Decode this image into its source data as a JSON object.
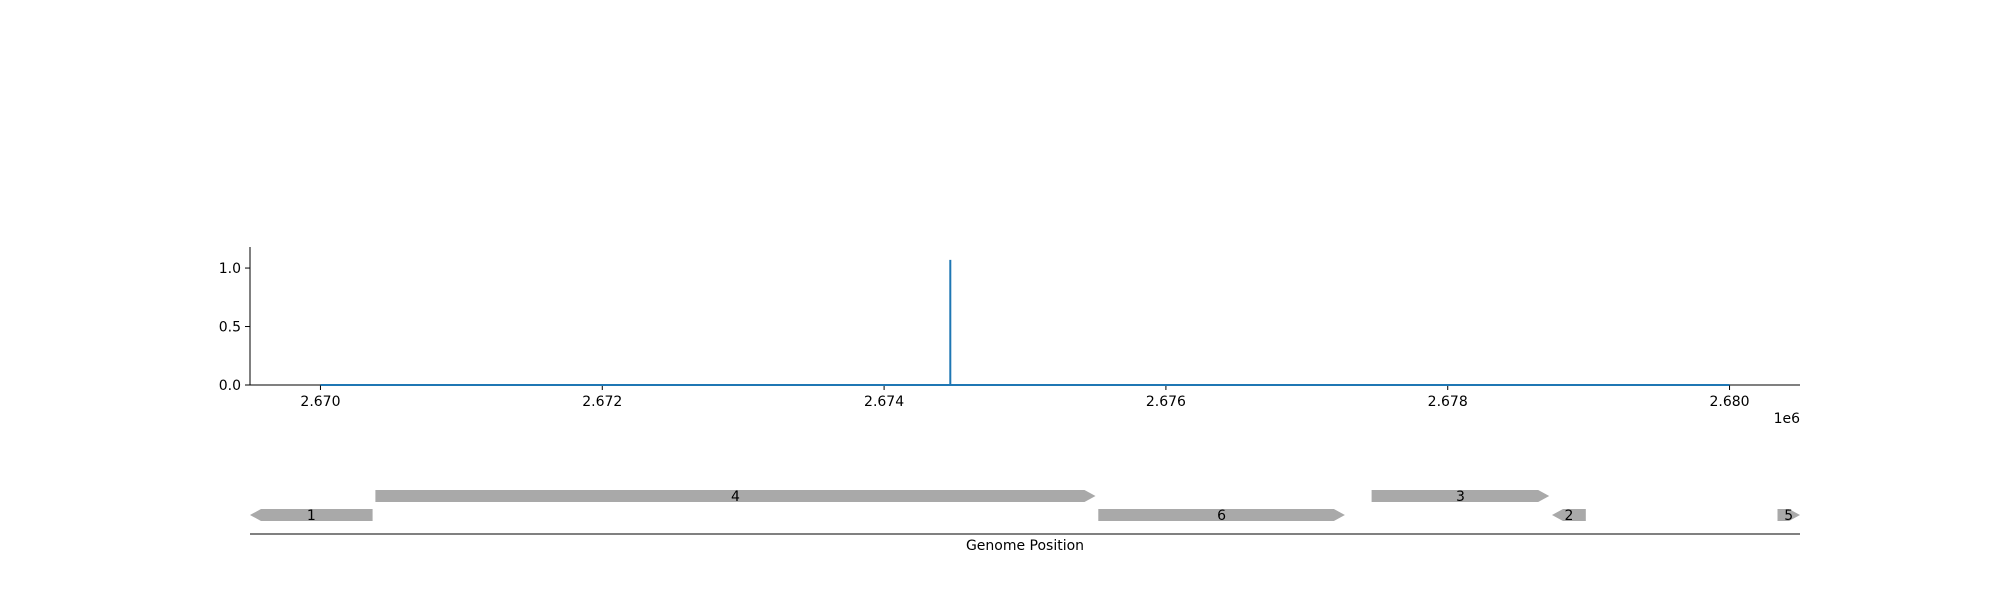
{
  "chart_data": [
    {
      "type": "line",
      "x_unit_multiplier": "1e6",
      "x": [
        2670000,
        2674470,
        2674470,
        2674470,
        2674470,
        2680000
      ],
      "series": [
        {
          "values": [
            0,
            0,
            0,
            1.07,
            0,
            0
          ]
        }
      ],
      "xlim": [
        2669500,
        2680500
      ],
      "ylim": [
        0,
        1.18
      ],
      "xticks": [
        2670000,
        2672000,
        2674000,
        2676000,
        2678000,
        2680000
      ],
      "xtick_labels": [
        "2.670",
        "2.672",
        "2.674",
        "2.676",
        "2.678",
        "2.680"
      ],
      "yticks": [
        0,
        0.5,
        1
      ],
      "ytick_labels": [
        "0.0",
        "0.5",
        "1.0"
      ],
      "grid": false,
      "line_color": "#1f77b4"
    },
    {
      "type": "gene-track",
      "xlabel": "Genome Position",
      "xlim": [
        2669500,
        2680500
      ],
      "feature_color": "#a9a9a9",
      "features": [
        {
          "label": "1",
          "start": 2669500,
          "end": 2670370,
          "strand": "-",
          "row": 1
        },
        {
          "label": "4",
          "start": 2670390,
          "end": 2675500,
          "strand": "+",
          "row": 0
        },
        {
          "label": "6",
          "start": 2675520,
          "end": 2677270,
          "strand": "+",
          "row": 1
        },
        {
          "label": "3",
          "start": 2677460,
          "end": 2678720,
          "strand": "+",
          "row": 0
        },
        {
          "label": "2",
          "start": 2678740,
          "end": 2678980,
          "strand": "-",
          "row": 1
        },
        {
          "label": "5",
          "start": 2680340,
          "end": 2680500,
          "strand": "+",
          "row": 1
        }
      ]
    }
  ]
}
